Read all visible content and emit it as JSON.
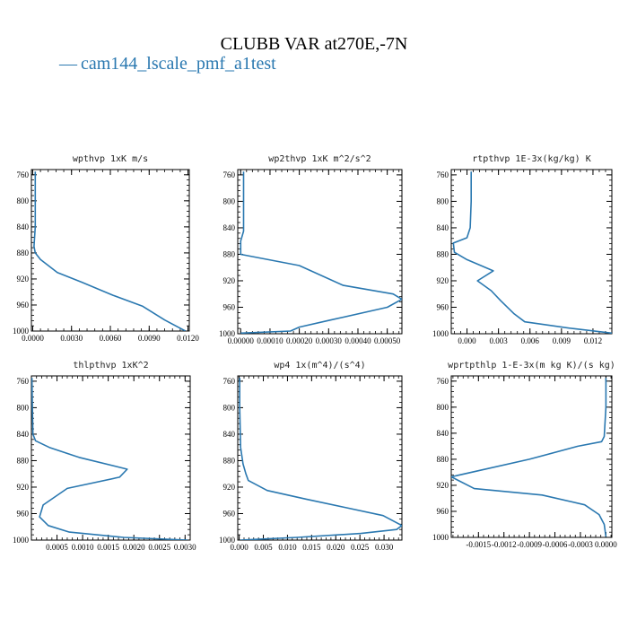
{
  "figure": {
    "title": "CLUBB VAR at270E,-7N",
    "legend_label": "cam144_lscale_pmf_a1test",
    "legend_marker": "—",
    "series_color": "#2a78b0"
  },
  "chart_data": [
    {
      "type": "line",
      "title": "wpthvp  1xK m/s",
      "series": [
        {
          "name": "cam144_lscale_pmf_a1test",
          "x": [
            0.0002,
            0.0002,
            0.0002,
            0.0001,
            0.0002,
            0.0006,
            0.0019,
            0.0038,
            0.0062,
            0.0085,
            0.0102,
            0.0118
          ],
          "y": [
            755,
            800,
            840,
            870,
            880,
            890,
            910,
            925,
            945,
            962,
            983,
            1000
          ]
        }
      ],
      "xlim": [
        -0.0001,
        0.0121
      ],
      "ylim": [
        1000,
        752
      ],
      "xticks": [
        0,
        0.003,
        0.006,
        0.009,
        0.012
      ],
      "xtick_labels": [
        "0.0000",
        "0.0030",
        "0.0060",
        "0.0090",
        "0.0120"
      ],
      "yticks": [
        760,
        800,
        840,
        880,
        920,
        960,
        1000
      ],
      "ytick_labels": [
        "760",
        "800",
        "840",
        "880",
        "920",
        "960",
        "1000"
      ],
      "grid": false
    },
    {
      "type": "line",
      "title": "wp2thvp  1xK m^2/s^2",
      "series": [
        {
          "name": "cam144_lscale_pmf_a1test",
          "x": [
            1e-05,
            1e-05,
            1e-05,
            0.0,
            0.0,
            0.0002,
            0.00035,
            0.00052,
            0.00055,
            0.0005,
            0.0003,
            0.0002,
            0.00017,
            0.0
          ],
          "y": [
            755,
            800,
            845,
            860,
            880,
            897,
            927,
            940,
            948,
            960,
            980,
            990,
            996,
            999
          ]
        }
      ],
      "xlim": [
        -1e-05,
        0.00055
      ],
      "ylim": [
        1000,
        752
      ],
      "xticks": [
        0,
        0.0001,
        0.0002,
        0.0003,
        0.0004,
        0.0005
      ],
      "xtick_labels": [
        "0.00000",
        "0.00010",
        "0.00020",
        "0.00030",
        "0.00040",
        "0.00050"
      ],
      "yticks": [
        760,
        800,
        840,
        880,
        920,
        960,
        1000
      ],
      "ytick_labels": [
        "760",
        "800",
        "840",
        "880",
        "920",
        "960",
        "1000"
      ],
      "grid": false
    },
    {
      "type": "line",
      "title": "rtpthvp  1E-3x(kg/kg) K",
      "series": [
        {
          "name": "cam144_lscale_pmf_a1test",
          "x": [
            0.0004,
            0.0004,
            0.0003,
            0.0,
            -0.0013,
            -0.0012,
            0.0,
            0.0025,
            0.001,
            0.0023,
            0.0032,
            0.0045,
            0.0055,
            0.01,
            0.0138
          ],
          "y": [
            755,
            800,
            840,
            855,
            863,
            877,
            888,
            905,
            920,
            935,
            950,
            970,
            982,
            992,
            999
          ]
        }
      ],
      "xlim": [
        -0.0015,
        0.0138
      ],
      "ylim": [
        1000,
        752
      ],
      "xticks": [
        0,
        0.003,
        0.006,
        0.009,
        0.012
      ],
      "xtick_labels": [
        "0.000",
        "0.003",
        "0.006",
        "0.009",
        "0.012"
      ],
      "yticks": [
        760,
        800,
        840,
        880,
        920,
        960,
        1000
      ],
      "ytick_labels": [
        "760",
        "800",
        "840",
        "880",
        "920",
        "960",
        "1000"
      ],
      "grid": false
    },
    {
      "type": "line",
      "title": "thlpthvp  1xK^2",
      "series": [
        {
          "name": "cam144_lscale_pmf_a1test",
          "x": [
            1e-05,
            2e-05,
            3e-05,
            8e-05,
            0.00035,
            0.00093,
            0.00187,
            0.00172,
            0.0007,
            0.00023,
            0.00016,
            0.00033,
            0.00074,
            0.0018,
            0.00305
          ],
          "y": [
            755,
            800,
            840,
            850,
            860,
            875,
            893,
            905,
            922,
            947,
            965,
            978,
            988,
            996,
            1000
          ]
        }
      ],
      "xlim": [
        0.0,
        0.0031
      ],
      "ylim": [
        1000,
        752
      ],
      "xticks": [
        0.0005,
        0.001,
        0.0015,
        0.002,
        0.0025,
        0.003
      ],
      "xtick_labels": [
        "0.0005",
        "0.0010",
        "0.0015",
        "0.0020",
        "0.0025",
        "0.0030"
      ],
      "yticks": [
        760,
        800,
        840,
        880,
        920,
        960,
        1000
      ],
      "ytick_labels": [
        "760",
        "800",
        "840",
        "880",
        "920",
        "960",
        "1000"
      ],
      "grid": false
    },
    {
      "type": "line",
      "title": "wp4  1x(m^4)/(s^4)",
      "series": [
        {
          "name": "cam144_lscale_pmf_a1test",
          "x": [
            0.0001,
            0.0001,
            0.0003,
            0.0008,
            0.0014,
            0.0019,
            0.0058,
            0.0138,
            0.0215,
            0.0298,
            0.0337,
            0.0326,
            0.0252,
            0.012,
            0.003,
            0.0002
          ],
          "y": [
            755,
            800,
            860,
            885,
            900,
            910,
            925,
            938,
            950,
            963,
            978,
            984,
            990,
            996,
            999,
            1000
          ]
        }
      ],
      "xlim": [
        -0.0003,
        0.0337
      ],
      "ylim": [
        1000,
        752
      ],
      "xticks": [
        0,
        0.005,
        0.01,
        0.015,
        0.02,
        0.025,
        0.03
      ],
      "xtick_labels": [
        "0.000",
        "0.005",
        "0.010",
        "0.015",
        "0.020",
        "0.025",
        "0.030"
      ],
      "yticks": [
        760,
        800,
        840,
        880,
        920,
        960,
        1000
      ],
      "ytick_labels": [
        "760",
        "800",
        "840",
        "880",
        "920",
        "960",
        "1000"
      ],
      "grid": false
    },
    {
      "type": "line",
      "title": "wprtpthlp  1-E-3x(m kg K)/(s kg)",
      "series": [
        {
          "name": "cam144_lscale_pmf_a1test",
          "x": [
            0.0,
            0.0,
            -2e-05,
            -5e-05,
            -0.00033,
            -0.0009,
            -0.00182,
            -0.00155,
            -0.00075,
            -0.00025,
            -8e-05,
            -2e-05,
            0.0
          ],
          "y": [
            755,
            800,
            845,
            853,
            860,
            880,
            907,
            925,
            935,
            950,
            965,
            980,
            999
          ]
        }
      ],
      "xlim": [
        -0.00182,
        7e-05
      ],
      "ylim": [
        1000,
        752
      ],
      "xticks": [
        -0.0015,
        -0.0012,
        -0.0009,
        -0.0006,
        -0.0003,
        0.0
      ],
      "xtick_labels": [
        "-0.0015",
        "-0.0012",
        "-0.0009",
        "-0.0006",
        "-0.0003",
        "0.0000"
      ],
      "yticks": [
        760,
        800,
        840,
        880,
        920,
        960,
        1000
      ],
      "ytick_labels": [
        "760",
        "800",
        "840",
        "880",
        "920",
        "960",
        "1000"
      ],
      "grid": false
    }
  ]
}
